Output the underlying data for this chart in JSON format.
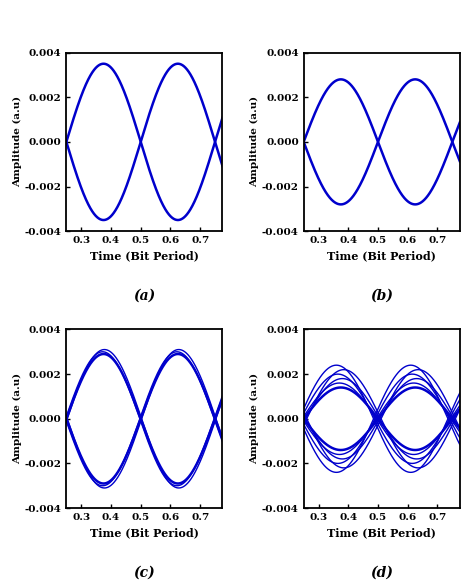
{
  "subplot_labels": [
    "(a)",
    "(b)",
    "(c)",
    "(d)"
  ],
  "xlim": [
    0.25,
    0.775
  ],
  "ylim": [
    -0.004,
    0.004
  ],
  "xticks": [
    0.3,
    0.4,
    0.5,
    0.6,
    0.7
  ],
  "yticks": [
    -0.004,
    -0.002,
    0.0,
    0.002,
    0.004
  ],
  "xlabel": "Time (Bit Period)",
  "ylabel": "Amplitude (a.u)",
  "line_color": "#0000CC",
  "panels": [
    {
      "amp": 0.0035,
      "num_traces": 1,
      "amp_spread": 0.0,
      "phase_spreads": [
        0.0
      ]
    },
    {
      "amp": 0.0028,
      "num_traces": 1,
      "amp_spread": 0.0,
      "phase_spreads": [
        0.0
      ]
    },
    {
      "amp": 0.003,
      "num_traces": 3,
      "amp_spread": 0.0001,
      "phase_spreads": [
        0.0,
        0.003,
        -0.003
      ]
    },
    {
      "amp": 0.002,
      "num_traces": 6,
      "amp_spread": 0.0002,
      "phase_spreads": [
        0.0,
        0.005,
        -0.005,
        0.01,
        -0.01,
        0.015
      ]
    }
  ]
}
